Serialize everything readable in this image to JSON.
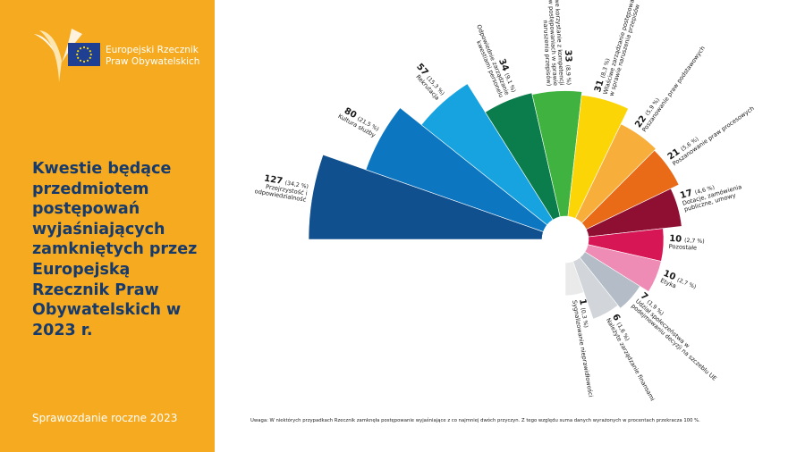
{
  "sidebar": {
    "logo_line1": "Europejski Rzecznik",
    "logo_line2": "Praw Obywatelskich",
    "title": "Kwestie będące przedmiotem postępowań wyjaśniających zamkniętych przez Europejską Rzecznik Praw Obywatelskich w 2023 r.",
    "footer": "Sprawozdanie roczne 2023"
  },
  "note": "Uwaga: W niektórych przypadkach Rzecznik zamknęła postępowanie wyjaśniające z co najmniej dwóch przyczyn. Z tego względu suma danych wyrażonych w procentach przekracza 100 %.",
  "colors": {
    "sidebar": "#f6aa1f",
    "title": "#163a6b"
  },
  "chart_data": {
    "type": "polar-area",
    "title": "",
    "slices": [
      {
        "label_lines": [
          "Przejrzystość i",
          "odpowiedzialność"
        ],
        "count": 127,
        "pct": "(34,2 %)",
        "color": "#11508f"
      },
      {
        "label_lines": [
          "Kultura służby"
        ],
        "count": 80,
        "pct": "(21,5 %)",
        "color": "#0d76c1"
      },
      {
        "label_lines": [
          "Rekrutacja"
        ],
        "count": 57,
        "pct": "(15,3 %)",
        "color": "#17a3e0"
      },
      {
        "label_lines": [
          "Odpowiednie zarządzanie",
          "kwestiami personelu"
        ],
        "count": 34,
        "pct": "(9,1 %)",
        "color": "#0b7d4c"
      },
      {
        "label_lines": [
          "Właściwe korzystanie z kompetencji",
          "(m.in. w postępowaniach w sprawie",
          "naruszenia przepisów)"
        ],
        "count": 33,
        "pct": "(8,9 %)",
        "color": "#3fb23f"
      },
      {
        "label_lines": [
          "Właściwe zarządzanie postępowaniem",
          "w sprawie naruszenia przepisów"
        ],
        "count": 31,
        "pct": "(8,3 %)",
        "color": "#fcd506"
      },
      {
        "label_lines": [
          "Poszanowanie praw podstawowych"
        ],
        "count": 22,
        "pct": "(5,9 %)",
        "color": "#f8ae3a"
      },
      {
        "label_lines": [
          "Poszanowanie praw procesowych"
        ],
        "count": 21,
        "pct": "(5,6 %)",
        "color": "#ea6b17"
      },
      {
        "label_lines": [
          "Dotacje, zamówienia",
          "publiczne, umowy"
        ],
        "count": 17,
        "pct": "(4,6 %)",
        "color": "#8f0f33"
      },
      {
        "label_lines": [
          "Pozostałe"
        ],
        "count": 10,
        "pct": "(2,7 %)",
        "color": "#d71656"
      },
      {
        "label_lines": [
          "Etyka"
        ],
        "count": 10,
        "pct": "(2,7 %)",
        "color": "#ee8cb5"
      },
      {
        "label_lines": [
          "Udział społeczeństwa w",
          "podejmowaniu decyzji na szczeblu UE"
        ],
        "count": 7,
        "pct": "(1,9 %)",
        "color": "#b4bdc7"
      },
      {
        "label_lines": [
          "Należyte zarządzanie finansami"
        ],
        "count": 6,
        "pct": "(1,6 %)",
        "color": "#d2d6da"
      },
      {
        "label_lines": [
          "Sygnalizowanie nieprawidłowości"
        ],
        "count": 1,
        "pct": "(0,3 %)",
        "color": "#eaeaea"
      }
    ]
  }
}
